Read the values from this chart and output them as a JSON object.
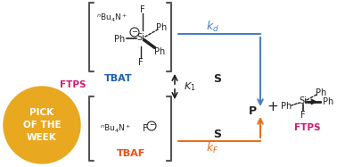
{
  "bg_color": "#ffffff",
  "pick_circle_color": "#E8A820",
  "pick_text": [
    "PICK",
    "OF THE",
    "WEEK"
  ],
  "pick_text_color": "#ffffff",
  "tbat_label": "TBAT",
  "tbat_label_color": "#1a5fa8",
  "tbaf_label": "TBAF",
  "tbaf_label_color": "#E8501A",
  "ftps_left_color": "#cc1a6e",
  "ftps_right_color": "#cc1a6e",
  "k1_color": "#222222",
  "kd_color": "#4a7fc1",
  "kF_color": "#E8701A",
  "arrow_blue": "#4a7fc1",
  "arrow_orange": "#E8701A",
  "arrow_black": "#222222",
  "S_label_color": "#222222",
  "P_label_color": "#222222"
}
